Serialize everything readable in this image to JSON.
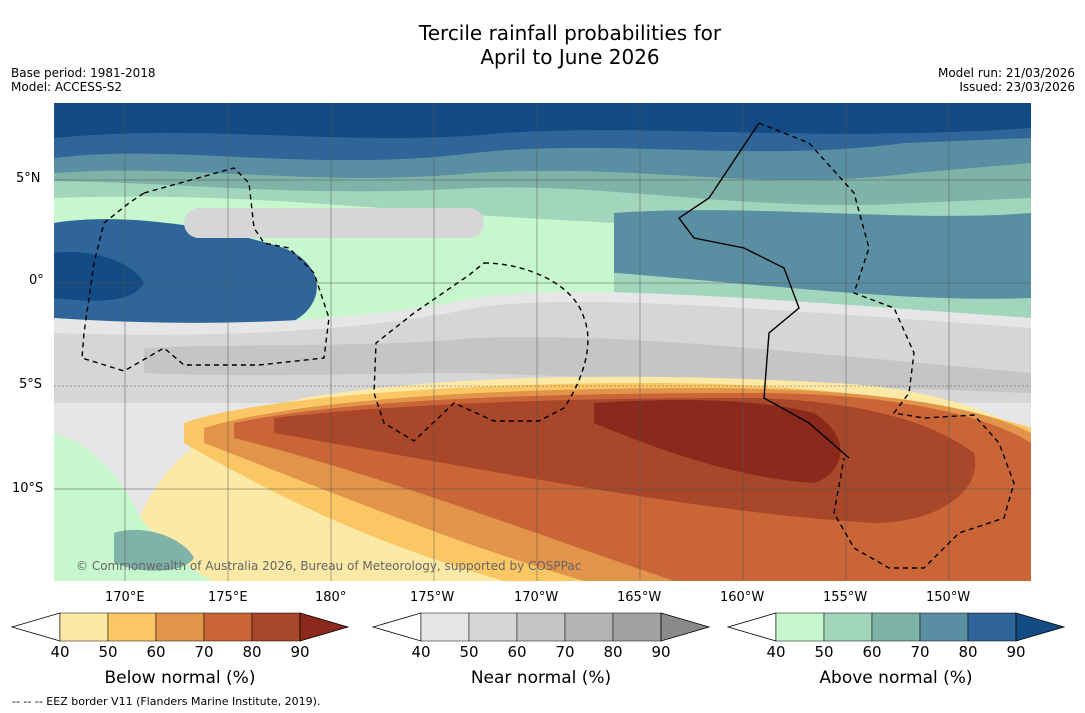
{
  "title_line1": "Tercile rainfall probabilities for",
  "title_line2": "April to June 2026",
  "meta_left": {
    "base_period": "Base period: 1981-2018",
    "model": "Model: ACCESS-S2"
  },
  "meta_right": {
    "model_run": "Model run: 21/03/2026",
    "issued": "Issued: 23/03/2026"
  },
  "lat_labels": [
    "5°N",
    "0°",
    "5°S",
    "10°S"
  ],
  "lon_labels": [
    "170°E",
    "175°E",
    "180°",
    "175°W",
    "170°W",
    "165°W",
    "160°W",
    "155°W",
    "150°W"
  ],
  "copyright": "© Commonwealth of Australia 2026, Bureau of Meteorology, supported by COSPPac",
  "colorbars": [
    {
      "title": "Below normal (%)",
      "ticks": [
        "40",
        "50",
        "60",
        "70",
        "80",
        "90"
      ],
      "colors": [
        "#ffffff",
        "#fde9a6",
        "#fbc765",
        "#e1944a",
        "#c96537",
        "#a8472a",
        "#8b2a1c"
      ]
    },
    {
      "title": "Near normal (%)",
      "ticks": [
        "40",
        "50",
        "60",
        "70",
        "80",
        "90"
      ],
      "colors": [
        "#ffffff",
        "#e6e6e6",
        "#d6d6d6",
        "#c5c5c5",
        "#b3b3b3",
        "#a2a2a2",
        "#8a8a8a"
      ]
    },
    {
      "title": "Above normal (%)",
      "ticks": [
        "40",
        "50",
        "60",
        "70",
        "80",
        "90"
      ],
      "colors": [
        "#ffffff",
        "#c7f7cc",
        "#a1d6bd",
        "#80b3a8",
        "#5a8ea2",
        "#2f6599",
        "#134b85"
      ]
    }
  ],
  "footer": "--  --  -- EEZ border V11 (Flanders Marine Institute, 2019)."
}
